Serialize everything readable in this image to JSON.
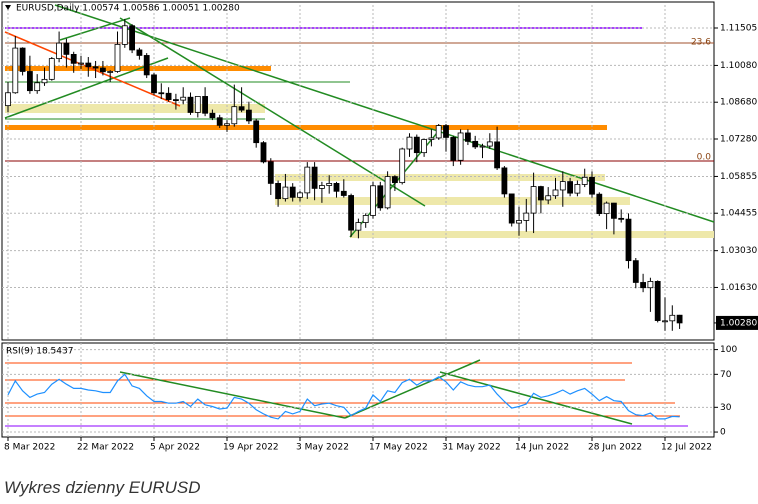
{
  "caption": "Wykres dzienny EURUSD",
  "chart_data": [
    {
      "type": "candlestick",
      "title": "EURUSD,Daily  1.00574 1.00586 1.00051 1.00280",
      "categories": [
        "8 Mar 2022",
        null,
        null,
        null,
        null,
        null,
        null,
        null,
        null,
        null,
        "22 Mar 2022",
        null,
        null,
        null,
        null,
        null,
        null,
        null,
        null,
        null,
        "5 Apr 2022",
        null,
        null,
        null,
        null,
        null,
        null,
        null,
        null,
        null,
        "19 Apr 2022",
        null,
        null,
        null,
        null,
        null,
        null,
        null,
        null,
        null,
        "3 May 2022",
        null,
        null,
        null,
        null,
        null,
        null,
        null,
        null,
        null,
        "17 May 2022",
        null,
        null,
        null,
        null,
        null,
        null,
        null,
        null,
        null,
        "31 May 2022",
        null,
        null,
        null,
        null,
        null,
        null,
        null,
        null,
        null,
        "14 Jun 2022",
        null,
        null,
        null,
        null,
        null,
        null,
        null,
        null,
        null,
        "28 Jun 2022",
        null,
        null,
        null,
        null,
        null,
        null,
        null,
        null,
        null,
        "12 Jul 2022",
        null,
        null
      ],
      "ohlc": [
        [
          1.0855,
          1.0945,
          1.083,
          1.0904
        ],
        [
          1.0904,
          1.112,
          1.09,
          1.1074
        ],
        [
          1.1074,
          1.1077,
          1.097,
          1.0985
        ],
        [
          1.0985,
          1.1045,
          1.09,
          1.0912
        ],
        [
          1.0912,
          1.0975,
          1.09,
          1.0942
        ],
        [
          1.0942,
          1.1,
          1.093,
          1.0955
        ],
        [
          1.0955,
          1.104,
          1.095,
          1.1034
        ],
        [
          1.1034,
          1.1137,
          1.102,
          1.1093
        ],
        [
          1.1093,
          1.111,
          1.1,
          1.105
        ],
        [
          1.105,
          1.106,
          1.098,
          1.1016
        ],
        [
          1.1016,
          1.1045,
          1.0995,
          1.1017
        ],
        [
          1.1017,
          1.104,
          1.0965,
          1.1003
        ],
        [
          1.1003,
          1.1025,
          1.096,
          1.0998
        ],
        [
          1.0998,
          1.1025,
          1.097,
          1.0984
        ],
        [
          1.0984,
          1.099,
          1.0945,
          1.0985
        ],
        [
          1.0985,
          1.1137,
          1.098,
          1.1088
        ],
        [
          1.1088,
          1.1185,
          1.1075,
          1.1159
        ],
        [
          1.1159,
          1.1165,
          1.1055,
          1.1067
        ],
        [
          1.1067,
          1.1075,
          1.103,
          1.1046
        ],
        [
          1.1046,
          1.1055,
          1.096,
          1.0972
        ],
        [
          1.0972,
          1.098,
          1.0895,
          1.0904
        ],
        [
          1.0904,
          1.094,
          1.088,
          1.0902
        ],
        [
          1.0902,
          1.0925,
          1.087,
          1.0878
        ],
        [
          1.0878,
          1.09,
          1.084,
          1.0876
        ],
        [
          1.0876,
          1.0925,
          1.086,
          1.0887
        ],
        [
          1.0887,
          1.0905,
          1.082,
          1.0829
        ],
        [
          1.0829,
          1.089,
          1.081,
          1.089
        ],
        [
          1.089,
          1.0925,
          1.0815,
          1.0826
        ],
        [
          1.0826,
          1.084,
          1.08,
          1.0809
        ],
        [
          1.0809,
          1.082,
          1.077,
          1.078
        ],
        [
          1.078,
          1.08,
          1.0755,
          1.0786
        ],
        [
          1.0786,
          1.0935,
          1.0775,
          1.0851
        ],
        [
          1.0851,
          1.0925,
          1.083,
          1.0838
        ],
        [
          1.0838,
          1.087,
          1.0785,
          1.0797
        ],
        [
          1.0797,
          1.0805,
          1.0695,
          1.0714
        ],
        [
          1.0714,
          1.072,
          1.0635,
          1.0641
        ],
        [
          1.0641,
          1.0655,
          1.0515,
          1.0559
        ],
        [
          1.0559,
          1.057,
          1.047,
          1.0501
        ],
        [
          1.0501,
          1.0595,
          1.049,
          1.0545
        ],
        [
          1.0545,
          1.056,
          1.049,
          1.0506
        ],
        [
          1.0506,
          1.053,
          1.049,
          1.0523
        ],
        [
          1.0523,
          1.064,
          1.05,
          1.0621
        ],
        [
          1.0621,
          1.064,
          1.0495,
          1.054
        ],
        [
          1.054,
          1.0565,
          1.0485,
          1.0551
        ],
        [
          1.0551,
          1.059,
          1.052,
          1.0559
        ],
        [
          1.0559,
          1.0565,
          1.0505,
          1.0529
        ],
        [
          1.0529,
          1.0575,
          1.0505,
          1.0513
        ],
        [
          1.0513,
          1.052,
          1.0355,
          1.0381
        ],
        [
          1.0381,
          1.0425,
          1.035,
          1.041
        ],
        [
          1.041,
          1.0445,
          1.039,
          1.0437
        ],
        [
          1.0437,
          1.0565,
          1.0425,
          1.055
        ],
        [
          1.055,
          1.0565,
          1.0455,
          1.0466
        ],
        [
          1.0466,
          1.0605,
          1.046,
          1.0585
        ],
        [
          1.0585,
          1.059,
          1.053,
          1.0562
        ],
        [
          1.0562,
          1.0695,
          1.0555,
          1.069
        ],
        [
          1.069,
          1.075,
          1.066,
          1.0735
        ],
        [
          1.0735,
          1.0745,
          1.064,
          1.0676
        ],
        [
          1.0676,
          1.073,
          1.066,
          1.0726
        ],
        [
          1.0726,
          1.0765,
          1.07,
          1.0732
        ],
        [
          1.0732,
          1.0785,
          1.0725,
          1.0779
        ],
        [
          1.0779,
          1.0785,
          1.068,
          1.0734
        ],
        [
          1.0734,
          1.074,
          1.0625,
          1.0647
        ],
        [
          1.0647,
          1.0765,
          1.063,
          1.0751
        ],
        [
          1.0751,
          1.0765,
          1.0705,
          1.0719
        ],
        [
          1.0719,
          1.074,
          1.069,
          1.0698
        ],
        [
          1.0698,
          1.071,
          1.0655,
          1.0701
        ],
        [
          1.0701,
          1.075,
          1.069,
          1.0717
        ],
        [
          1.0717,
          1.0775,
          1.061,
          1.0618
        ],
        [
          1.0618,
          1.0625,
          1.0505,
          1.0519
        ],
        [
          1.0519,
          1.052,
          1.0395,
          1.0408
        ],
        [
          1.0408,
          1.047,
          1.036,
          1.0418
        ],
        [
          1.0418,
          1.05,
          1.0375,
          1.0446
        ],
        [
          1.0446,
          1.06,
          1.037,
          1.0547
        ],
        [
          1.0547,
          1.055,
          1.0445,
          1.0496
        ],
        [
          1.0496,
          1.0545,
          1.048,
          1.0512
        ],
        [
          1.0512,
          1.058,
          1.05,
          1.0534
        ],
        [
          1.0534,
          1.0605,
          1.047,
          1.0566
        ],
        [
          1.0566,
          1.058,
          1.051,
          1.0522
        ],
        [
          1.0522,
          1.057,
          1.051,
          1.0555
        ],
        [
          1.0555,
          1.0615,
          1.0545,
          1.0582
        ],
        [
          1.0582,
          1.0605,
          1.0505,
          1.0518
        ],
        [
          1.0518,
          1.0525,
          1.0435,
          1.0444
        ],
        [
          1.0444,
          1.049,
          1.0385,
          1.0484
        ],
        [
          1.0484,
          1.0485,
          1.0365,
          1.0426
        ],
        [
          1.0426,
          1.046,
          1.041,
          1.0423
        ],
        [
          1.0423,
          1.0445,
          1.0235,
          1.0265
        ],
        [
          1.0265,
          1.0275,
          1.016,
          1.0182
        ],
        [
          1.0182,
          1.0215,
          1.0145,
          1.0162
        ],
        [
          1.0162,
          1.02,
          1.007,
          1.0186
        ],
        [
          1.0186,
          1.019,
          1.003,
          1.0037
        ],
        [
          1.0036,
          1.0125,
          0.9998,
          1.0036
        ],
        [
          1.0036,
          1.0095,
          0.9998,
          1.0057
        ],
        [
          1.00574,
          1.00586,
          1.00051,
          1.0028
        ]
      ],
      "up_color": "#ffffff",
      "down_color": "#000000",
      "ylim": [
        0.9963,
        1.1238
      ],
      "yticks": [
        1.11505,
        {
          "value": 1.1008,
          "label": "1.10080"
        },
        {
          "value": 1.0868,
          "label": "1.08680"
        },
        {
          "value": 1.0728,
          "label": "1.07280"
        },
        1.05855,
        1.04455,
        {
          "value": 1.0303,
          "label": "1.03030"
        },
        {
          "value": 1.0163,
          "label": "1.01630"
        },
        {
          "value": 1.0028,
          "label": "1.00280"
        }
      ],
      "grid": true,
      "annotations": [
        "23.6",
        "0.0"
      ]
    },
    {
      "type": "line",
      "title": "RSI(9) 18.5437",
      "color": "#1e90ff",
      "values": [
        45,
        62,
        50,
        42,
        46,
        48,
        58,
        64,
        58,
        53,
        53,
        51,
        50,
        48,
        48,
        62,
        70,
        56,
        53,
        44,
        37,
        37,
        35,
        35,
        37,
        31,
        40,
        33,
        31,
        28,
        29,
        42,
        40,
        35,
        27,
        22,
        18,
        16,
        25,
        22,
        25,
        40,
        32,
        34,
        35,
        32,
        30,
        20,
        25,
        29,
        45,
        37,
        50,
        48,
        60,
        64,
        57,
        62,
        62,
        67,
        61,
        51,
        61,
        57,
        55,
        55,
        57,
        46,
        37,
        29,
        31,
        34,
        47,
        42,
        44,
        47,
        51,
        46,
        50,
        53,
        46,
        38,
        43,
        38,
        37,
        26,
        21,
        20,
        23,
        16,
        16,
        19,
        18.5437
      ],
      "ylim": [
        -6,
        108
      ],
      "yticks": [
        100,
        70,
        30,
        0
      ],
      "grid": true
    }
  ]
}
